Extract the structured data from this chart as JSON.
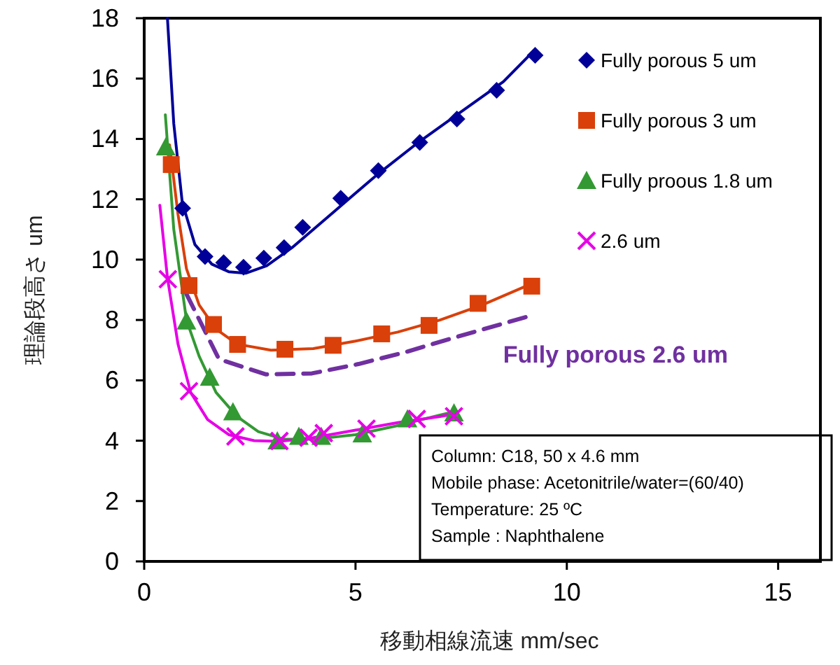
{
  "chart_data": {
    "type": "scatter",
    "xlabel": "移動相線流速 mm/sec",
    "ylabel": "理論段高さ um",
    "xlim": [
      0,
      16
    ],
    "xticks": [
      0,
      5,
      10,
      15
    ],
    "ylim": [
      0,
      18
    ],
    "yticks": [
      0,
      2,
      4,
      6,
      8,
      10,
      12,
      14,
      16,
      18
    ],
    "legend": "top right",
    "series": [
      {
        "type": "line",
        "color": "#000099",
        "x": [
          0.55,
          0.7,
          0.9,
          1.2,
          1.6,
          2.0,
          2.4,
          2.9,
          3.5,
          4.5,
          5.5,
          6.5,
          7.5,
          8.5,
          9.1
        ],
        "values": [
          18,
          14.5,
          11.9,
          10.5,
          9.85,
          9.6,
          9.55,
          9.8,
          10.4,
          11.6,
          12.8,
          13.9,
          14.9,
          15.9,
          16.75
        ]
      },
      {
        "type": "line",
        "color": "#d9400a",
        "x": [
          0.6,
          0.8,
          1.0,
          1.3,
          1.7,
          2.2,
          3.0,
          4.0,
          5.0,
          6.0,
          7.0,
          8.0,
          9.0,
          9.2
        ],
        "values": [
          13.8,
          11.5,
          9.7,
          8.5,
          7.7,
          7.2,
          7.0,
          7.05,
          7.3,
          7.6,
          8.0,
          8.5,
          9.1,
          9.25
        ]
      },
      {
        "type": "line",
        "color": "#339933",
        "x": [
          0.5,
          0.7,
          1.0,
          1.3,
          1.7,
          2.2,
          2.7,
          3.3,
          4.0,
          5.0,
          6.0,
          7.0,
          7.3
        ],
        "values": [
          14.8,
          11.0,
          8.0,
          6.8,
          5.6,
          4.8,
          4.3,
          4.05,
          4.05,
          4.2,
          4.5,
          4.85,
          4.95
        ]
      },
      {
        "type": "line",
        "color": "#e600e6",
        "x": [
          0.37,
          0.55,
          0.8,
          1.1,
          1.5,
          2.0,
          2.6,
          3.2,
          4.0,
          5.0,
          6.0,
          7.0,
          7.4
        ],
        "values": [
          11.8,
          9.4,
          7.2,
          5.6,
          4.7,
          4.2,
          4.0,
          3.98,
          4.1,
          4.35,
          4.6,
          4.8,
          4.9
        ]
      },
      {
        "type": "line",
        "name": "Fully porous 2.6 um",
        "color": "#7030a0",
        "line_style": "dashed",
        "x": [
          1.0,
          1.77,
          2.87,
          3.97,
          5.07,
          6.17,
          7.27,
          9.09
        ],
        "values": [
          8.86,
          6.7,
          6.2,
          6.23,
          6.54,
          6.93,
          7.39,
          8.12
        ]
      },
      {
        "name": "Fully porous 5 um",
        "color": "#000099",
        "marker": "diamond",
        "x": [
          0.91,
          1.44,
          1.88,
          2.35,
          2.83,
          3.31,
          3.75,
          4.65,
          5.54,
          6.52,
          7.4,
          8.34,
          9.25
        ],
        "values": [
          11.7,
          10.1,
          9.9,
          9.75,
          10.05,
          10.4,
          11.07,
          12.03,
          12.95,
          13.88,
          14.66,
          15.61,
          16.77
        ]
      },
      {
        "name": "Fully porous 3 um",
        "color": "#d9400a",
        "marker": "square",
        "x": [
          0.64,
          1.06,
          1.64,
          2.21,
          3.33,
          4.47,
          5.62,
          6.74,
          7.9,
          9.17
        ],
        "values": [
          13.15,
          9.14,
          7.85,
          7.19,
          7.03,
          7.16,
          7.54,
          7.82,
          8.55,
          9.12
        ]
      },
      {
        "name": "Fully proous 1.8 um",
        "color": "#339933",
        "marker": "triangle",
        "x": [
          0.51,
          1.0,
          1.55,
          2.1,
          3.15,
          3.66,
          4.19,
          5.16,
          6.23,
          7.33
        ],
        "values": [
          13.73,
          7.96,
          6.1,
          4.95,
          3.99,
          4.14,
          4.14,
          4.22,
          4.72,
          4.92
        ]
      },
      {
        "name": "2.6 um",
        "color": "#e600e6",
        "marker": "cross",
        "x": [
          0.56,
          1.06,
          2.16,
          3.2,
          3.89,
          4.25,
          5.26,
          6.45,
          7.33
        ],
        "values": [
          9.35,
          5.64,
          4.14,
          3.99,
          4.1,
          4.25,
          4.4,
          4.72,
          4.81
        ]
      }
    ],
    "annotations": [
      "Column: C18, 50 x 4.6 mm",
      "Mobile phase: Acetonitrile/water=(60/40)",
      "Temperature: 25 ºC",
      "Sample : Naphthalene"
    ]
  }
}
